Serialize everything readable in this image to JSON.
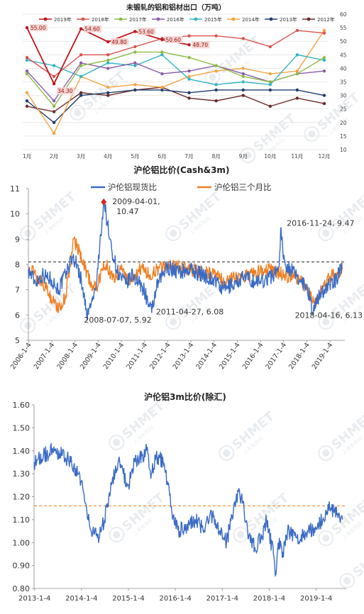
{
  "chart_data": [
    {
      "type": "line",
      "title": "未锻轧的铝和铝材出口（万吨）",
      "categories": [
        "1月",
        "2月",
        "3月",
        "4月",
        "5月",
        "6月",
        "7月",
        "8月",
        "9月",
        "10月",
        "11月",
        "12月"
      ],
      "ylim": [
        10,
        60
      ],
      "yticks": [
        10,
        15,
        20,
        25,
        30,
        35,
        40,
        45,
        50,
        55,
        60
      ],
      "y_axis_side": "right",
      "legend_position": "top",
      "series": [
        {
          "name": "2019年",
          "color": "#c0151b",
          "values": [
            55.0,
            34.3,
            54.6,
            49.8,
            53.6,
            50.6,
            48.7,
            null,
            null,
            null,
            null,
            null
          ]
        },
        {
          "name": "2018年",
          "color": "#d9534f",
          "values": [
            44,
            37,
            45,
            45,
            48,
            51,
            52,
            52,
            51,
            48,
            54,
            53
          ]
        },
        {
          "name": "2017年",
          "color": "#8dbb44",
          "values": [
            38,
            26,
            41,
            43,
            46,
            46,
            44,
            41,
            37,
            35,
            38,
            44
          ]
        },
        {
          "name": "2016年",
          "color": "#8a5dab",
          "values": [
            39,
            28,
            42,
            40,
            42,
            38,
            39,
            41,
            38,
            35,
            38,
            39
          ]
        },
        {
          "name": "2015年",
          "color": "#33b5c5",
          "values": [
            43,
            41,
            37,
            42,
            41,
            45,
            36,
            34,
            35,
            34,
            45,
            43
          ]
        },
        {
          "name": "2014年",
          "color": "#f4a340",
          "values": [
            31,
            16,
            37,
            33,
            34,
            33,
            37,
            39,
            40,
            38,
            39,
            54
          ]
        },
        {
          "name": "2013年",
          "color": "#1f3e6e",
          "values": [
            28,
            20,
            30,
            31,
            32,
            32,
            31,
            32,
            32,
            32,
            32,
            30
          ]
        },
        {
          "name": "2012年",
          "color": "#6b2a2a",
          "values": [
            26,
            24,
            31,
            30,
            32,
            33,
            29,
            28,
            30,
            26,
            29,
            27
          ]
        }
      ],
      "data_labels": [
        {
          "text": "55.00",
          "x": "1月",
          "y": 55.0
        },
        {
          "text": "34.30",
          "x": "2月",
          "y": 34.3
        },
        {
          "text": "54.60",
          "x": "3月",
          "y": 54.6
        },
        {
          "text": "49.80",
          "x": "4月",
          "y": 49.8
        },
        {
          "text": "53.60",
          "x": "5月",
          "y": 53.6
        },
        {
          "text": "50.60",
          "x": "6月",
          "y": 50.6
        },
        {
          "text": "48.70",
          "x": "7月",
          "y": 48.7
        }
      ]
    },
    {
      "type": "line",
      "title": "沪伦铝比价(Cash&3m)",
      "ylim": [
        5,
        11
      ],
      "yticks": [
        5,
        6,
        7,
        8,
        9,
        10,
        11
      ],
      "xticks": [
        "2006-1-4",
        "2007-1-4",
        "2008-1-4",
        "2009-1-4",
        "2010-1-4",
        "2011-1-4",
        "2012-1-4",
        "2013-1-4",
        "2014-1-4",
        "2015-1-4",
        "2016-1-4",
        "2017-1-4",
        "2018-1-4",
        "2019-1-4"
      ],
      "legend_position": "top",
      "reference_line": 8.1,
      "series": [
        {
          "name": "沪伦铝现货比",
          "color": "#3a6bc4",
          "anchors": [
            [
              2006.0,
              7.8
            ],
            [
              2006.3,
              7.3
            ],
            [
              2006.6,
              7.6
            ],
            [
              2007.0,
              7.4
            ],
            [
              2007.3,
              7.0
            ],
            [
              2007.6,
              7.6
            ],
            [
              2007.9,
              8.3
            ],
            [
              2008.1,
              8.0
            ],
            [
              2008.35,
              7.1
            ],
            [
              2008.52,
              5.92
            ],
            [
              2008.7,
              6.4
            ],
            [
              2008.9,
              7.0
            ],
            [
              2009.0,
              7.8
            ],
            [
              2009.12,
              9.2
            ],
            [
              2009.25,
              10.47
            ],
            [
              2009.35,
              10.0
            ],
            [
              2009.5,
              9.0
            ],
            [
              2009.7,
              8.2
            ],
            [
              2009.9,
              7.6
            ],
            [
              2010.2,
              7.2
            ],
            [
              2010.5,
              7.6
            ],
            [
              2010.8,
              7.2
            ],
            [
              2011.0,
              7.0
            ],
            [
              2011.15,
              6.5
            ],
            [
              2011.32,
              6.08
            ],
            [
              2011.5,
              7.0
            ],
            [
              2011.8,
              7.6
            ],
            [
              2012.0,
              7.9
            ],
            [
              2012.5,
              7.7
            ],
            [
              2013.0,
              7.8
            ],
            [
              2013.5,
              7.6
            ],
            [
              2014.0,
              7.4
            ],
            [
              2014.4,
              7.0
            ],
            [
              2014.8,
              7.2
            ],
            [
              2015.3,
              7.5
            ],
            [
              2015.8,
              7.3
            ],
            [
              2016.2,
              7.4
            ],
            [
              2016.6,
              7.6
            ],
            [
              2016.8,
              7.9
            ],
            [
              2016.9,
              9.47
            ],
            [
              2017.0,
              8.2
            ],
            [
              2017.3,
              7.8
            ],
            [
              2017.7,
              7.4
            ],
            [
              2018.0,
              7.2
            ],
            [
              2018.29,
              6.13
            ],
            [
              2018.6,
              6.9
            ],
            [
              2019.0,
              7.2
            ],
            [
              2019.3,
              7.4
            ],
            [
              2019.55,
              8.05
            ]
          ]
        },
        {
          "name": "沪伦铝三个月比",
          "color": "#ef7f22",
          "anchors": [
            [
              2006.0,
              7.9
            ],
            [
              2006.4,
              7.5
            ],
            [
              2006.8,
              7.0
            ],
            [
              2007.1,
              6.5
            ],
            [
              2007.4,
              6.2
            ],
            [
              2007.6,
              6.8
            ],
            [
              2007.8,
              8.0
            ],
            [
              2007.95,
              9.0
            ],
            [
              2008.2,
              8.5
            ],
            [
              2008.45,
              7.8
            ],
            [
              2008.7,
              7.3
            ],
            [
              2008.95,
              7.0
            ],
            [
              2009.15,
              7.8
            ],
            [
              2009.35,
              8.0
            ],
            [
              2009.55,
              7.6
            ],
            [
              2009.8,
              7.5
            ],
            [
              2010.0,
              7.8
            ],
            [
              2010.3,
              7.3
            ],
            [
              2010.6,
              7.6
            ],
            [
              2010.9,
              7.9
            ],
            [
              2011.2,
              7.6
            ],
            [
              2011.5,
              7.8
            ],
            [
              2012.0,
              8.0
            ],
            [
              2012.5,
              7.9
            ],
            [
              2013.0,
              7.8
            ],
            [
              2013.5,
              7.7
            ],
            [
              2014.0,
              7.6
            ],
            [
              2014.5,
              7.3
            ],
            [
              2015.0,
              7.5
            ],
            [
              2015.5,
              7.6
            ],
            [
              2016.0,
              7.7
            ],
            [
              2016.5,
              7.8
            ],
            [
              2017.0,
              7.6
            ],
            [
              2017.5,
              7.5
            ],
            [
              2017.8,
              7.3
            ],
            [
              2018.1,
              6.8
            ],
            [
              2018.35,
              6.4
            ],
            [
              2018.7,
              7.1
            ],
            [
              2019.0,
              7.5
            ],
            [
              2019.3,
              7.6
            ],
            [
              2019.55,
              7.9
            ]
          ]
        }
      ],
      "annotations": [
        {
          "text": "2009-04-01,",
          "text2": "10.47",
          "x": 2009.25,
          "y": 10.47
        },
        {
          "text": "2016-11-24, 9.47",
          "x": 2016.9,
          "y": 9.47
        },
        {
          "text": "2008-07-07, 5.92",
          "x": 2008.52,
          "y": 5.92
        },
        {
          "text": "2011-04-27, 6.08",
          "x": 2011.32,
          "y": 6.08
        },
        {
          "text": "2018-04-16, 6.13",
          "x": 2018.29,
          "y": 6.13
        }
      ]
    },
    {
      "type": "line",
      "title": "沪伦铝3m比价(除汇)",
      "ylim": [
        0.8,
        1.6
      ],
      "yticks": [
        "0.80",
        "0.90",
        "1.00",
        "1.10",
        "1.20",
        "1.30",
        "1.40",
        "1.50",
        "1.60"
      ],
      "xticks": [
        "2013-1-4",
        "2014-1-4",
        "2015-1-4",
        "2016-1-4",
        "2017-1-4",
        "2018-1-4",
        "2019-1-4"
      ],
      "reference_line": 1.16,
      "series": [
        {
          "color": "#3a6bc4",
          "anchors": [
            [
              2013.0,
              1.35
            ],
            [
              2013.2,
              1.38
            ],
            [
              2013.4,
              1.4
            ],
            [
              2013.6,
              1.38
            ],
            [
              2013.8,
              1.35
            ],
            [
              2013.95,
              1.3
            ],
            [
              2014.05,
              1.22
            ],
            [
              2014.15,
              1.1
            ],
            [
              2014.25,
              1.05
            ],
            [
              2014.35,
              1.02
            ],
            [
              2014.5,
              1.1
            ],
            [
              2014.65,
              1.25
            ],
            [
              2014.8,
              1.36
            ],
            [
              2014.9,
              1.3
            ],
            [
              2015.0,
              1.25
            ],
            [
              2015.15,
              1.35
            ],
            [
              2015.3,
              1.38
            ],
            [
              2015.4,
              1.4
            ],
            [
              2015.5,
              1.3
            ],
            [
              2015.6,
              1.38
            ],
            [
              2015.75,
              1.35
            ],
            [
              2015.85,
              1.25
            ],
            [
              2015.95,
              1.1
            ],
            [
              2016.1,
              1.05
            ],
            [
              2016.3,
              1.08
            ],
            [
              2016.5,
              1.1
            ],
            [
              2016.6,
              1.05
            ],
            [
              2016.7,
              1.1
            ],
            [
              2016.8,
              1.12
            ],
            [
              2016.95,
              1.05
            ],
            [
              2017.1,
              1.0
            ],
            [
              2017.25,
              1.15
            ],
            [
              2017.35,
              1.22
            ],
            [
              2017.45,
              1.18
            ],
            [
              2017.55,
              1.05
            ],
            [
              2017.7,
              0.98
            ],
            [
              2017.85,
              1.02
            ],
            [
              2017.95,
              1.1
            ],
            [
              2018.0,
              1.05
            ],
            [
              2018.1,
              0.95
            ],
            [
              2018.15,
              0.86
            ],
            [
              2018.2,
              1.0
            ],
            [
              2018.3,
              0.96
            ],
            [
              2018.4,
              1.05
            ],
            [
              2018.6,
              1.02
            ],
            [
              2018.8,
              1.04
            ],
            [
              2019.0,
              1.07
            ],
            [
              2019.15,
              1.1
            ],
            [
              2019.3,
              1.15
            ],
            [
              2019.45,
              1.12
            ],
            [
              2019.57,
              1.1
            ]
          ]
        }
      ]
    }
  ],
  "watermark": "SHMET",
  "watermark_sub": "上海有色网"
}
